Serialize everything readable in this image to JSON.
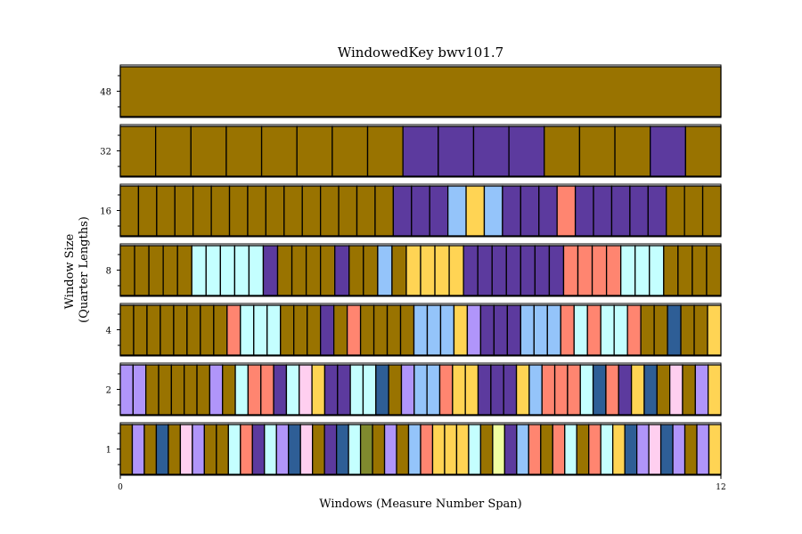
{
  "chart_data": {
    "type": "heatmap",
    "title": "WindowedKey bwv101.7",
    "xlabel": "Windows (Measure Number Span)",
    "ylabel_line1": "Window Size",
    "ylabel_line2": "(Quarter Lengths)",
    "xlim": [
      0,
      12
    ],
    "x_ticks": [
      {
        "value": 0,
        "label": "0"
      },
      {
        "value": 12,
        "label": "12"
      }
    ],
    "colors": {
      "D": "#997300",
      "P": "#5c3a9e",
      "L": "#94c4fa",
      "Y": "#ffd454",
      "R": "#ff8570",
      "C": "#c4ffff",
      "B": "#2e5e96",
      "V": "#b095fa",
      "K": "#ffcff0",
      "O": "#808a2e",
      "E": "#f0ffa0"
    },
    "rows": [
      {
        "label": "48",
        "cells": "D"
      },
      {
        "label": "32",
        "cells": "DDDDDDDDPPPPDDDPD"
      },
      {
        "label": "16",
        "cells": "DDDDDDDDDDDDDDDPPPLYLPPPRPPPPPDDD"
      },
      {
        "label": "8",
        "cells": "DDDDDCCCCCPDDDDPDDLDYYYYPPPPPPPRRRRCCCDDDD"
      },
      {
        "label": "4",
        "cells": "DDDDDDDDRCCCDDDPDRDDDDLLLYVPPPLLLRCRCCRDDBDDY"
      },
      {
        "label": "2",
        "cells": "VVDDDDDVDCRRPCKYPPCCBDVLLRYYPPPYLRRRCBRPYBDKDVY"
      },
      {
        "label": "1",
        "cells": "DVDBDKVDDCRPCVBKDPBCODVDLRYYYCDEPLRDRCDRCYBVKBVDVY"
      }
    ]
  }
}
